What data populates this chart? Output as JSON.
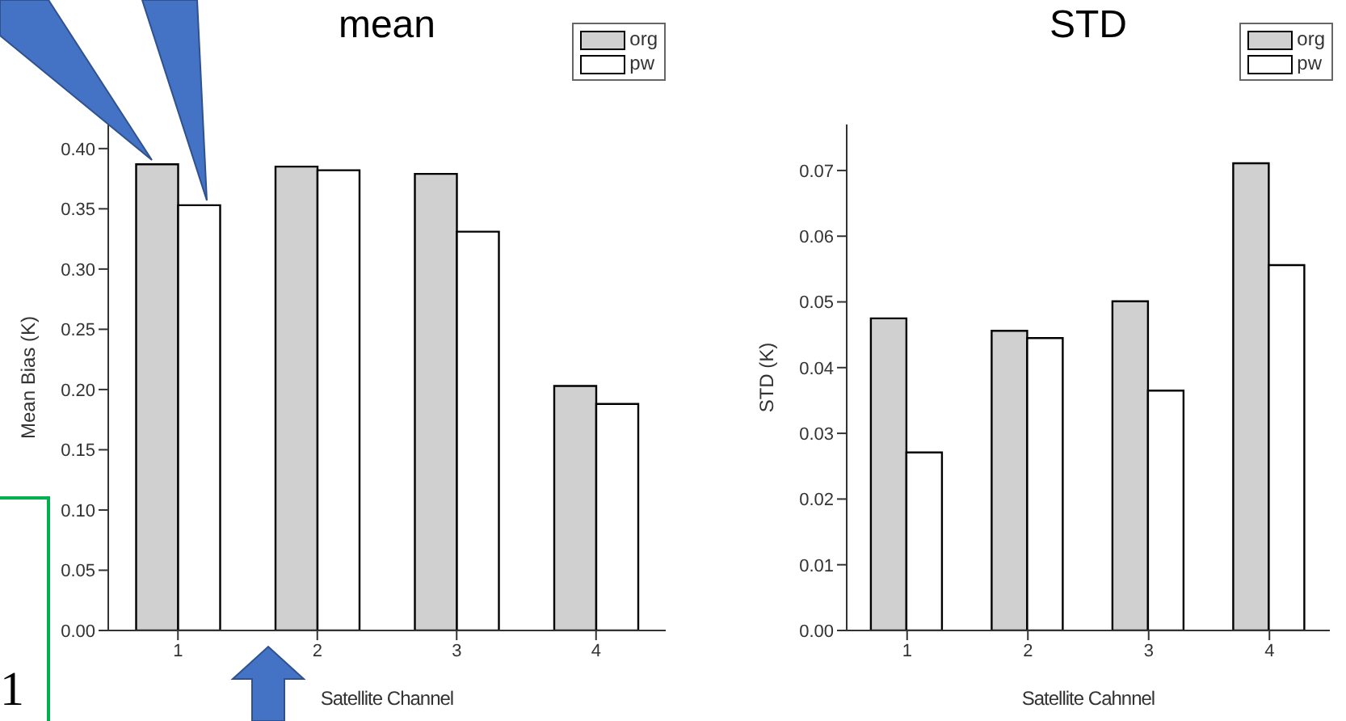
{
  "chart_data": [
    {
      "type": "bar",
      "title": "mean",
      "xlabel": "Satellite Channel",
      "ylabel": "Mean Bias (K)",
      "categories": [
        "1",
        "2",
        "3",
        "4"
      ],
      "series": [
        {
          "name": "org",
          "color": "#d0d0d0",
          "values": [
            0.387,
            0.385,
            0.379,
            0.203
          ]
        },
        {
          "name": "pw",
          "color": "#ffffff",
          "values": [
            0.353,
            0.382,
            0.331,
            0.188
          ]
        }
      ],
      "ylim": [
        0,
        0.42
      ],
      "yticks": [
        {
          "value": 0,
          "label": "0.00"
        },
        {
          "value": 0.05,
          "label": "0.05"
        },
        {
          "value": 0.1,
          "label": "0.10"
        },
        {
          "value": 0.15,
          "label": "0.15"
        },
        {
          "value": 0.2,
          "label": "0.20"
        },
        {
          "value": 0.25,
          "label": "0.25"
        },
        {
          "value": 0.3,
          "label": "0.30"
        },
        {
          "value": 0.35,
          "label": "0.35"
        },
        {
          "value": 0.4,
          "label": "0.40"
        }
      ],
      "legend": "top right",
      "annotations": [
        "1"
      ]
    },
    {
      "type": "bar",
      "title": "STD",
      "xlabel": "Satellite Cahnnel",
      "ylabel": "STD (K)",
      "categories": [
        "1",
        "2",
        "3",
        "4"
      ],
      "series": [
        {
          "name": "org",
          "color": "#d0d0d0",
          "values": [
            0.0475,
            0.0456,
            0.0501,
            0.0711
          ]
        },
        {
          "name": "pw",
          "color": "#ffffff",
          "values": [
            0.0271,
            0.0445,
            0.0365,
            0.0556
          ]
        }
      ],
      "ylim": [
        0,
        0.077
      ],
      "yticks": [
        {
          "value": 0,
          "label": "0.00"
        },
        {
          "value": 0.01,
          "label": "0.01"
        },
        {
          "value": 0.02,
          "label": "0.02"
        },
        {
          "value": 0.03,
          "label": "0.03"
        },
        {
          "value": 0.04,
          "label": "0.04"
        },
        {
          "value": 0.05,
          "label": "0.05"
        },
        {
          "value": 0.06,
          "label": "0.06"
        },
        {
          "value": 0.07,
          "label": "0.07"
        }
      ],
      "legend": "top right"
    }
  ]
}
